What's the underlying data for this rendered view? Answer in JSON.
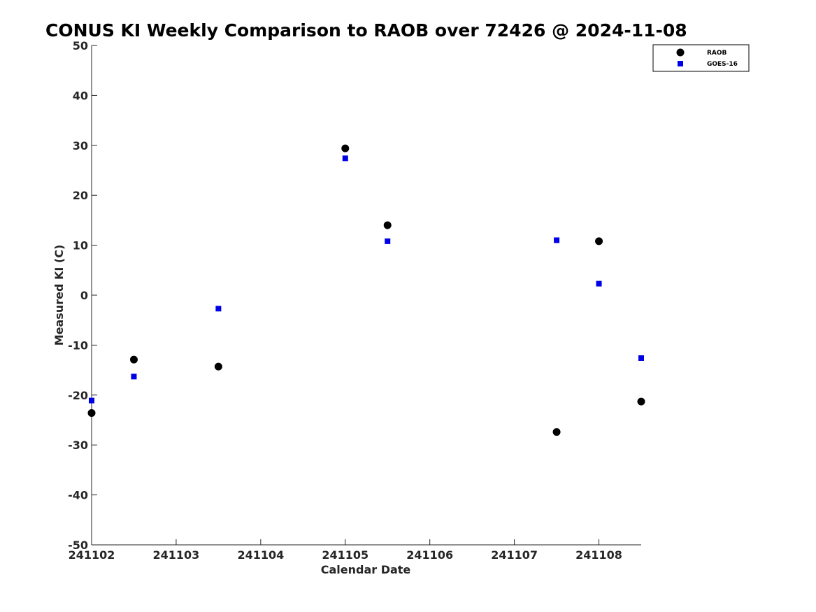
{
  "chart_data": {
    "type": "scatter",
    "title": "CONUS KI Weekly Comparison to RAOB over 72426 @ 2024-11-08",
    "xlabel": "Calendar Date",
    "ylabel": "Measured KI (C)",
    "xlim": [
      "241102",
      "241108 12Z"
    ],
    "ylim": [
      -50,
      50
    ],
    "x_ticks": [
      "241102",
      "241103",
      "241104",
      "241105",
      "241106",
      "241107",
      "241108"
    ],
    "y_ticks": [
      50,
      40,
      30,
      20,
      10,
      0,
      -10,
      -20,
      -30,
      -40,
      -50
    ],
    "y_tick_labels": [
      "50",
      "40",
      "30",
      "20",
      "10",
      "0",
      "-10",
      "-20",
      "-30",
      "-40",
      "-50"
    ],
    "grid": false,
    "legend_position": "top-right",
    "series": [
      {
        "name": "RAOB",
        "marker": "circle",
        "color": "#000000",
        "points": [
          {
            "x": "241102 00Z",
            "y": -23.6
          },
          {
            "x": "241102 12Z",
            "y": -12.9
          },
          {
            "x": "241103 12Z",
            "y": -14.3
          },
          {
            "x": "241105 00Z",
            "y": 29.4
          },
          {
            "x": "241105 12Z",
            "y": 14.0
          },
          {
            "x": "241107 12Z",
            "y": -27.4
          },
          {
            "x": "241108 00Z",
            "y": 10.8
          },
          {
            "x": "241108 12Z",
            "y": -21.3
          }
        ]
      },
      {
        "name": "GOES-16",
        "marker": "square",
        "color": "#0000e6",
        "points": [
          {
            "x": "241102 00Z",
            "y": -21.1
          },
          {
            "x": "241102 12Z",
            "y": -16.3
          },
          {
            "x": "241103 12Z",
            "y": -2.7
          },
          {
            "x": "241105 00Z",
            "y": 27.4
          },
          {
            "x": "241105 12Z",
            "y": 10.8
          },
          {
            "x": "241107 12Z",
            "y": 11.0
          },
          {
            "x": "241108 00Z",
            "y": 2.3
          },
          {
            "x": "241108 12Z",
            "y": -12.6
          }
        ]
      }
    ]
  }
}
